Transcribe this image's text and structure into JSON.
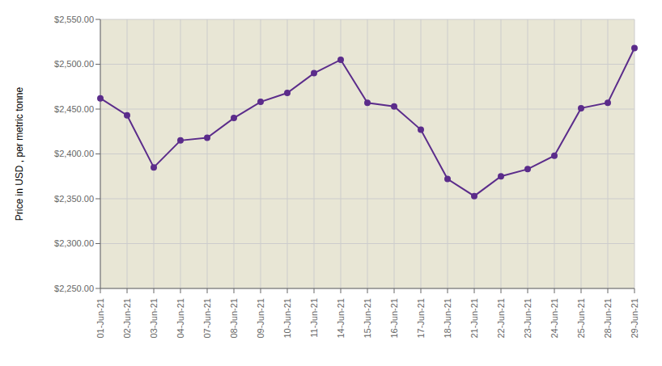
{
  "chart_data": {
    "type": "line",
    "ylabel": "Price in USD , per metric tonne",
    "categories": [
      "01-Jun-21",
      "02-Jun-21",
      "03-Jun-21",
      "04-Jun-21",
      "07-Jun-21",
      "08-Jun-21",
      "09-Jun-21",
      "10-Jun-21",
      "11-Jun-21",
      "14-Jun-21",
      "15-Jun-21",
      "16-Jun-21",
      "17-Jun-21",
      "18-Jun-21",
      "21-Jun-21",
      "22-Jun-21",
      "23-Jun-21",
      "24-Jun-21",
      "25-Jun-21",
      "28-Jun-21",
      "29-Jun-21"
    ],
    "values": [
      2462,
      2443,
      2385,
      2415,
      2418,
      2440,
      2458,
      2468,
      2490,
      2505,
      2457,
      2453,
      2427,
      2372,
      2353,
      2375,
      2383,
      2398,
      2451,
      2457,
      2518
    ],
    "color": "#5B2C8B",
    "marker": "circle",
    "ylim": [
      2250,
      2550
    ],
    "yticks": [
      {
        "value": 2250,
        "label": "$2,250.00"
      },
      {
        "value": 2300,
        "label": "$2,300.00"
      },
      {
        "value": 2350,
        "label": "$2,350.00"
      },
      {
        "value": 2400,
        "label": "$2,400.00"
      },
      {
        "value": 2450,
        "label": "$2,450.00"
      },
      {
        "value": 2500,
        "label": "$2,500.00"
      },
      {
        "value": 2550,
        "label": "$2,550.00"
      }
    ],
    "grid": true
  }
}
